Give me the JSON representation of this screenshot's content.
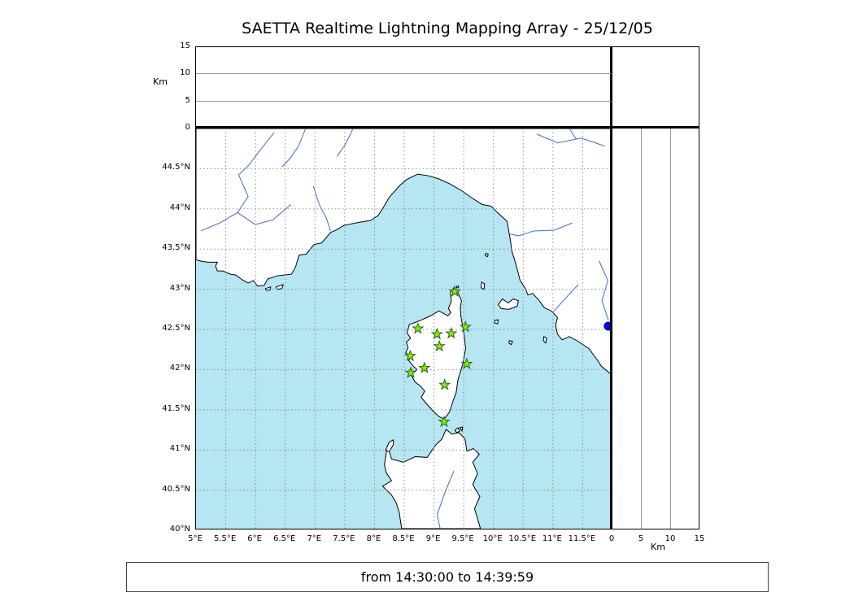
{
  "title": "SAETTA Realtime Lightning Mapping Array - 25/12/05",
  "status_text": "from 14:30:00 to 14:39:59",
  "top_panel": {
    "axis_label": "Km",
    "ticks": [
      {
        "label": "0",
        "km": 0
      },
      {
        "label": "5",
        "km": 5
      },
      {
        "label": "10",
        "km": 10
      },
      {
        "label": "15",
        "km": 15
      }
    ]
  },
  "right_panel": {
    "axis_label": "Km",
    "ticks": [
      {
        "label": "0",
        "km": 0
      },
      {
        "label": "5",
        "km": 5
      },
      {
        "label": "10",
        "km": 10
      },
      {
        "label": "15",
        "km": 15
      }
    ]
  },
  "map": {
    "lon_range": [
      5,
      12
    ],
    "lat_range": [
      40,
      45
    ],
    "grid_step_deg": 0.5,
    "lon_ticks": [
      {
        "label": "5°E",
        "lon": 5
      },
      {
        "label": "5.5°E",
        "lon": 5.5
      },
      {
        "label": "6°E",
        "lon": 6
      },
      {
        "label": "6.5°E",
        "lon": 6.5
      },
      {
        "label": "7°E",
        "lon": 7
      },
      {
        "label": "7.5°E",
        "lon": 7.5
      },
      {
        "label": "8°E",
        "lon": 8
      },
      {
        "label": "8.5°E",
        "lon": 8.5
      },
      {
        "label": "9°E",
        "lon": 9
      },
      {
        "label": "9.5°E",
        "lon": 9.5
      },
      {
        "label": "10°E",
        "lon": 10
      },
      {
        "label": "10.5°E",
        "lon": 10.5
      },
      {
        "label": "11°E",
        "lon": 11
      },
      {
        "label": "11.5°E",
        "lon": 11.5
      }
    ],
    "lat_ticks": [
      {
        "label": "40°N",
        "lat": 40
      },
      {
        "label": "40.5°N",
        "lat": 40.5
      },
      {
        "label": "41°N",
        "lat": 41
      },
      {
        "label": "41.5°N",
        "lat": 41.5
      },
      {
        "label": "42°N",
        "lat": 42
      },
      {
        "label": "42.5°N",
        "lat": 42.5
      },
      {
        "label": "43°N",
        "lat": 43
      },
      {
        "label": "43.5°N",
        "lat": 43.5
      },
      {
        "label": "44°N",
        "lat": 44
      },
      {
        "label": "44.5°N",
        "lat": 44.5
      }
    ],
    "colors": {
      "sea": "#b5e6f2",
      "land": "#ffffff",
      "coast": "#000000",
      "river": "#4169e1",
      "grid": "#909090",
      "station_fill": "#92e600",
      "station_edge": "#226622",
      "detection": "#0000cd"
    },
    "stations": [
      {
        "lon": 9.35,
        "lat": 42.97
      },
      {
        "lon": 8.73,
        "lat": 42.51
      },
      {
        "lon": 9.05,
        "lat": 42.44
      },
      {
        "lon": 9.29,
        "lat": 42.45
      },
      {
        "lon": 9.53,
        "lat": 42.53
      },
      {
        "lon": 9.09,
        "lat": 42.29
      },
      {
        "lon": 8.6,
        "lat": 42.17
      },
      {
        "lon": 9.55,
        "lat": 42.07
      },
      {
        "lon": 8.84,
        "lat": 42.02
      },
      {
        "lon": 8.61,
        "lat": 41.96
      },
      {
        "lon": 9.18,
        "lat": 41.81
      },
      {
        "lon": 9.17,
        "lat": 41.35
      }
    ],
    "detection": {
      "lon": 11.93,
      "lat": 42.54
    }
  }
}
